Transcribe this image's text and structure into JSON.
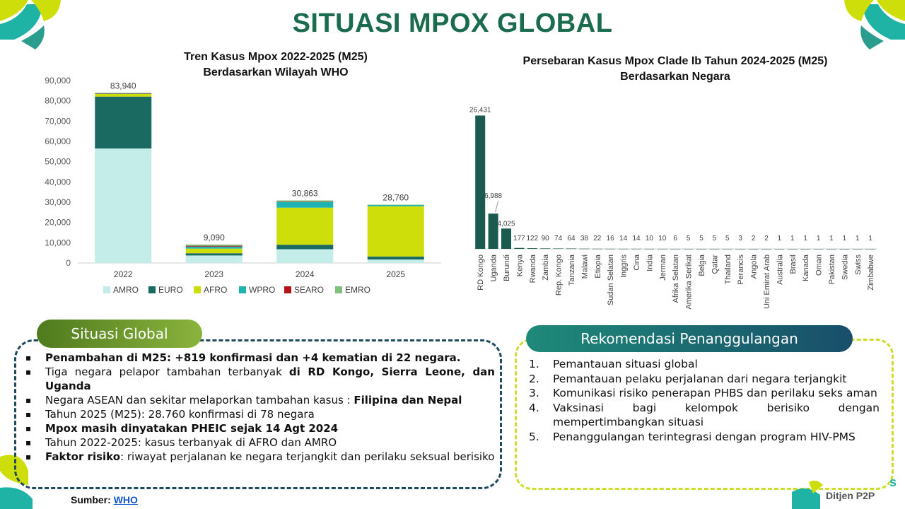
{
  "page_title": "SITUASI MPOX GLOBAL",
  "colors": {
    "title": "#1b6b4f",
    "AMRO": "#c4ece8",
    "EURO": "#1a6a62",
    "AFRO": "#cdde0a",
    "WPRO": "#1fb3b3",
    "SEARO": "#b3131b",
    "EMRO": "#7ec27a",
    "bar_right": "#1a5a4f"
  },
  "chart_left_title_line1": "Tren Kasus Mpox 2022-2025 (M25)",
  "chart_left_title_line2": "Berdasarkan Wilayah WHO",
  "chart_right_title_line1": "Persebaran Kasus Mpox Clade Ib Tahun 2024-2025 (M25)",
  "chart_right_title_line2": "Berdasarkan Negara",
  "chart_data": [
    {
      "type": "bar",
      "stacked": true,
      "title": "Tren Kasus Mpox 2022-2025 (M25) Berdasarkan Wilayah WHO",
      "categories": [
        "2022",
        "2023",
        "2024",
        "2025"
      ],
      "ylim": [
        0,
        90000
      ],
      "yticks": [
        0,
        10000,
        20000,
        30000,
        40000,
        50000,
        60000,
        70000,
        80000,
        90000
      ],
      "ytick_labels": [
        "0",
        "10,000",
        "20,000",
        "30,000",
        "40,000",
        "50,000",
        "60,000",
        "70,000",
        "80,000",
        "90,000"
      ],
      "series": [
        {
          "name": "AMRO",
          "values": [
            56500,
            3700,
            6800,
            1700
          ]
        },
        {
          "name": "EURO",
          "values": [
            25600,
            1100,
            2200,
            1500
          ]
        },
        {
          "name": "AFRO",
          "values": [
            1300,
            2300,
            18300,
            24800
          ]
        },
        {
          "name": "WPRO",
          "values": [
            200,
            1000,
            2800,
            700
          ]
        },
        {
          "name": "SEARO",
          "values": [
            100,
            400,
            200,
            0
          ]
        },
        {
          "name": "EMRO",
          "values": [
            240,
            590,
            563,
            60
          ]
        }
      ],
      "total_labels": [
        "83,940",
        "9,090",
        "30,863",
        "28,760"
      ],
      "legend_position": "bottom",
      "grid": false
    },
    {
      "type": "bar",
      "title": "Persebaran Kasus Mpox Clade Ib Tahun 2024-2025 (M25) Berdasarkan Negara",
      "categories": [
        "RD Kongo",
        "Uganda",
        "Burundi",
        "Kenya",
        "Rwanda",
        "Zambia",
        "Rep. Kongo",
        "Tanzania",
        "Malawi",
        "Etiopia",
        "Sudan Selatan",
        "Inggris",
        "Cina",
        "India",
        "Jerman",
        "Afrika Selatan",
        "Amerika Serikat",
        "Belgia",
        "Qatar",
        "Thailand",
        "Perancis",
        "Angola",
        "Uni Emirat Arab",
        "Australia",
        "Brasil",
        "Kanada",
        "Oman",
        "Pakistan",
        "Swedia",
        "Swiss",
        "Zimbabwe"
      ],
      "values": [
        26431,
        6988,
        4025,
        177,
        122,
        90,
        74,
        64,
        38,
        22,
        16,
        14,
        14,
        10,
        10,
        6,
        5,
        5,
        5,
        5,
        3,
        2,
        2,
        1,
        1,
        1,
        1,
        1,
        1,
        1,
        1
      ],
      "value_labels": [
        "26,431",
        "6,988",
        "4,025",
        "177",
        "122",
        "90",
        "74",
        "64",
        "38",
        "22",
        "16",
        "14",
        "14",
        "10",
        "10",
        "6",
        "5",
        "5",
        "5",
        "5",
        "3",
        "2",
        "2",
        "1",
        "1",
        "1",
        "1",
        "1",
        "1",
        "1",
        "1"
      ],
      "grid": false
    }
  ],
  "situasi": {
    "label": "Situasi Global",
    "items": [
      {
        "parts": [
          {
            "t": "Penambahan di M25: +819 konfirmasi dan +4 kematian di 22 negara.",
            "b": true
          }
        ]
      },
      {
        "parts": [
          {
            "t": "Tiga negara pelapor tambahan terbanyak ",
            "b": false
          },
          {
            "t": "di RD Kongo, Sierra Leone, dan Uganda",
            "b": true
          }
        ]
      },
      {
        "parts": [
          {
            "t": "Negara ASEAN dan sekitar melaporkan tambahan kasus : ",
            "b": false
          },
          {
            "t": "Filipina dan Nepal",
            "b": true
          }
        ]
      },
      {
        "parts": [
          {
            "t": "Tahun 2025 (M25): 28.760 konfirmasi di 78 negara",
            "b": false
          }
        ]
      },
      {
        "parts": [
          {
            "t": "Mpox masih dinyatakan PHEIC sejak 14 Agt 2024",
            "b": true
          }
        ]
      },
      {
        "parts": [
          {
            "t": "Tahun 2022-2025: kasus terbanyak di AFRO dan AMRO",
            "b": false
          }
        ]
      },
      {
        "parts": [
          {
            "t": "Faktor risiko",
            "b": true
          },
          {
            "t": ": riwayat perjalanan ke negara terjangkit dan perilaku seksual berisiko",
            "b": false
          }
        ]
      }
    ]
  },
  "rekomendasi": {
    "label": "Rekomendasi Penanggulangan",
    "items": [
      {
        "num": "1.",
        "text": "Pemantauan situasi global"
      },
      {
        "num": "2.",
        "text": "Pemantauan pelaku perjalanan dari negara terjangkit"
      },
      {
        "num": "3.",
        "text": "Komunikasi risiko penerapan PHBS dan perilaku seks aman"
      },
      {
        "num": "4.",
        "text": "Vaksinasi bagi kelompok berisiko dengan mempertimbangkan situasi"
      },
      {
        "num": "5.",
        "text": "Penanggulangan terintegrasi dengan program HIV-PMS"
      }
    ]
  },
  "source_label": "Sumber: ",
  "source_link": "WHO",
  "footer_text": "Ditjen P2P",
  "footer_logo_partial": "s"
}
